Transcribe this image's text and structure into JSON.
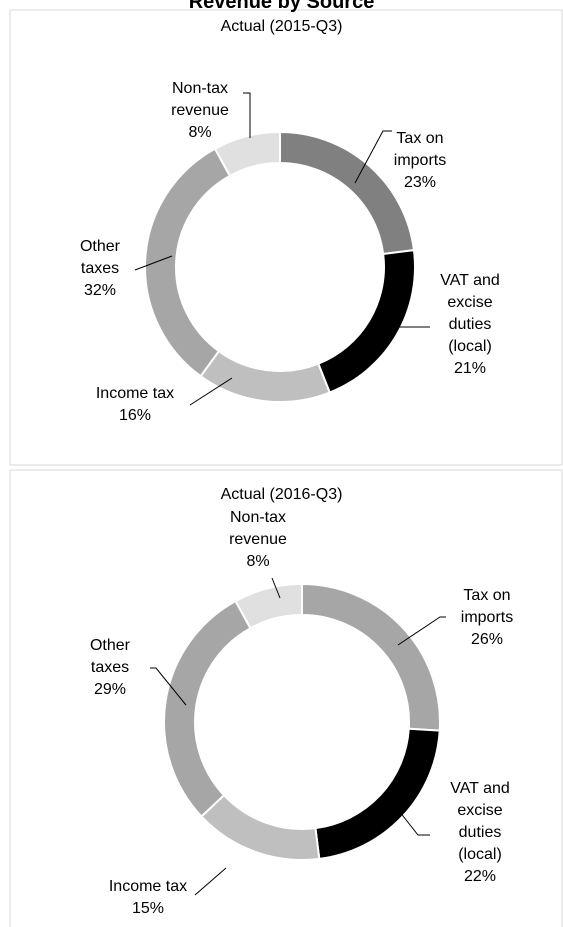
{
  "title": "Revenue by Source",
  "chart_data": [
    {
      "type": "donut",
      "title": "Actual (2015-Q3)",
      "categories": [
        "Tax on imports",
        "VAT and excise duties (local)",
        "Income tax",
        "Other taxes",
        "Non-tax revenue"
      ],
      "values": [
        23,
        21,
        16,
        32,
        8
      ],
      "value_labels": [
        "23%",
        "21%",
        "16%",
        "32%",
        "8%"
      ],
      "colors": [
        "#808080",
        "#000000",
        "#bfbfbf",
        "#a6a6a6",
        "#e0e0e0"
      ]
    },
    {
      "type": "donut",
      "title": "Actual (2016-Q3)",
      "categories": [
        "Tax on imports",
        "VAT and excise duties (local)",
        "Income tax",
        "Other taxes",
        "Non-tax revenue"
      ],
      "values": [
        26,
        22,
        15,
        29,
        8
      ],
      "value_labels": [
        "26%",
        "22%",
        "15%",
        "29%",
        "8%"
      ],
      "colors": [
        "#a6a6a6",
        "#000000",
        "#bfbfbf",
        "#a6a6a6",
        "#e0e0e0"
      ]
    }
  ]
}
